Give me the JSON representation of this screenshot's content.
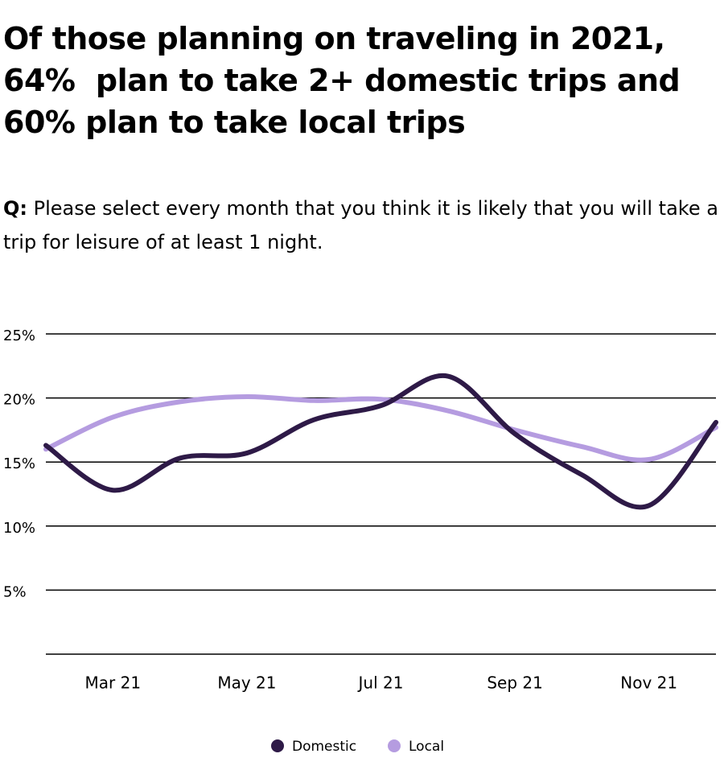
{
  "chart_data": {
    "type": "line",
    "title": [
      "Of those planning on traveling in 2021,",
      "64%  plan to take 2+ domestic trips and",
      "60% plan to take local trips"
    ],
    "question_label": "Q:",
    "question": "Please select every month that you think it is likely that you will take a trip for leisure of at least 1 night.",
    "categories": [
      null,
      "Mar 21",
      null,
      "May 21",
      null,
      "Jul 21",
      null,
      "Sep 21",
      null,
      "Nov 21",
      null
    ],
    "series": [
      {
        "name": "Domestic",
        "color": "#2e1a47",
        "values": [
          16.3,
          12.8,
          15.3,
          15.7,
          18.3,
          19.4,
          21.7,
          17.2,
          14.0,
          11.6,
          18.1
        ]
      },
      {
        "name": "Local",
        "color": "#b59ce0",
        "values": [
          16.0,
          18.5,
          19.7,
          20.1,
          19.8,
          19.9,
          19.0,
          17.5,
          16.2,
          15.2,
          17.7
        ]
      }
    ],
    "ylim": [
      0,
      25
    ],
    "yticks": [
      {
        "value": 5,
        "label": "5%"
      },
      {
        "value": 10,
        "label": "10%"
      },
      {
        "value": 15,
        "label": "15%"
      },
      {
        "value": 20,
        "label": "20%"
      },
      {
        "value": 25,
        "label": "25%"
      }
    ],
    "grid": true,
    "legend": "bottom"
  }
}
